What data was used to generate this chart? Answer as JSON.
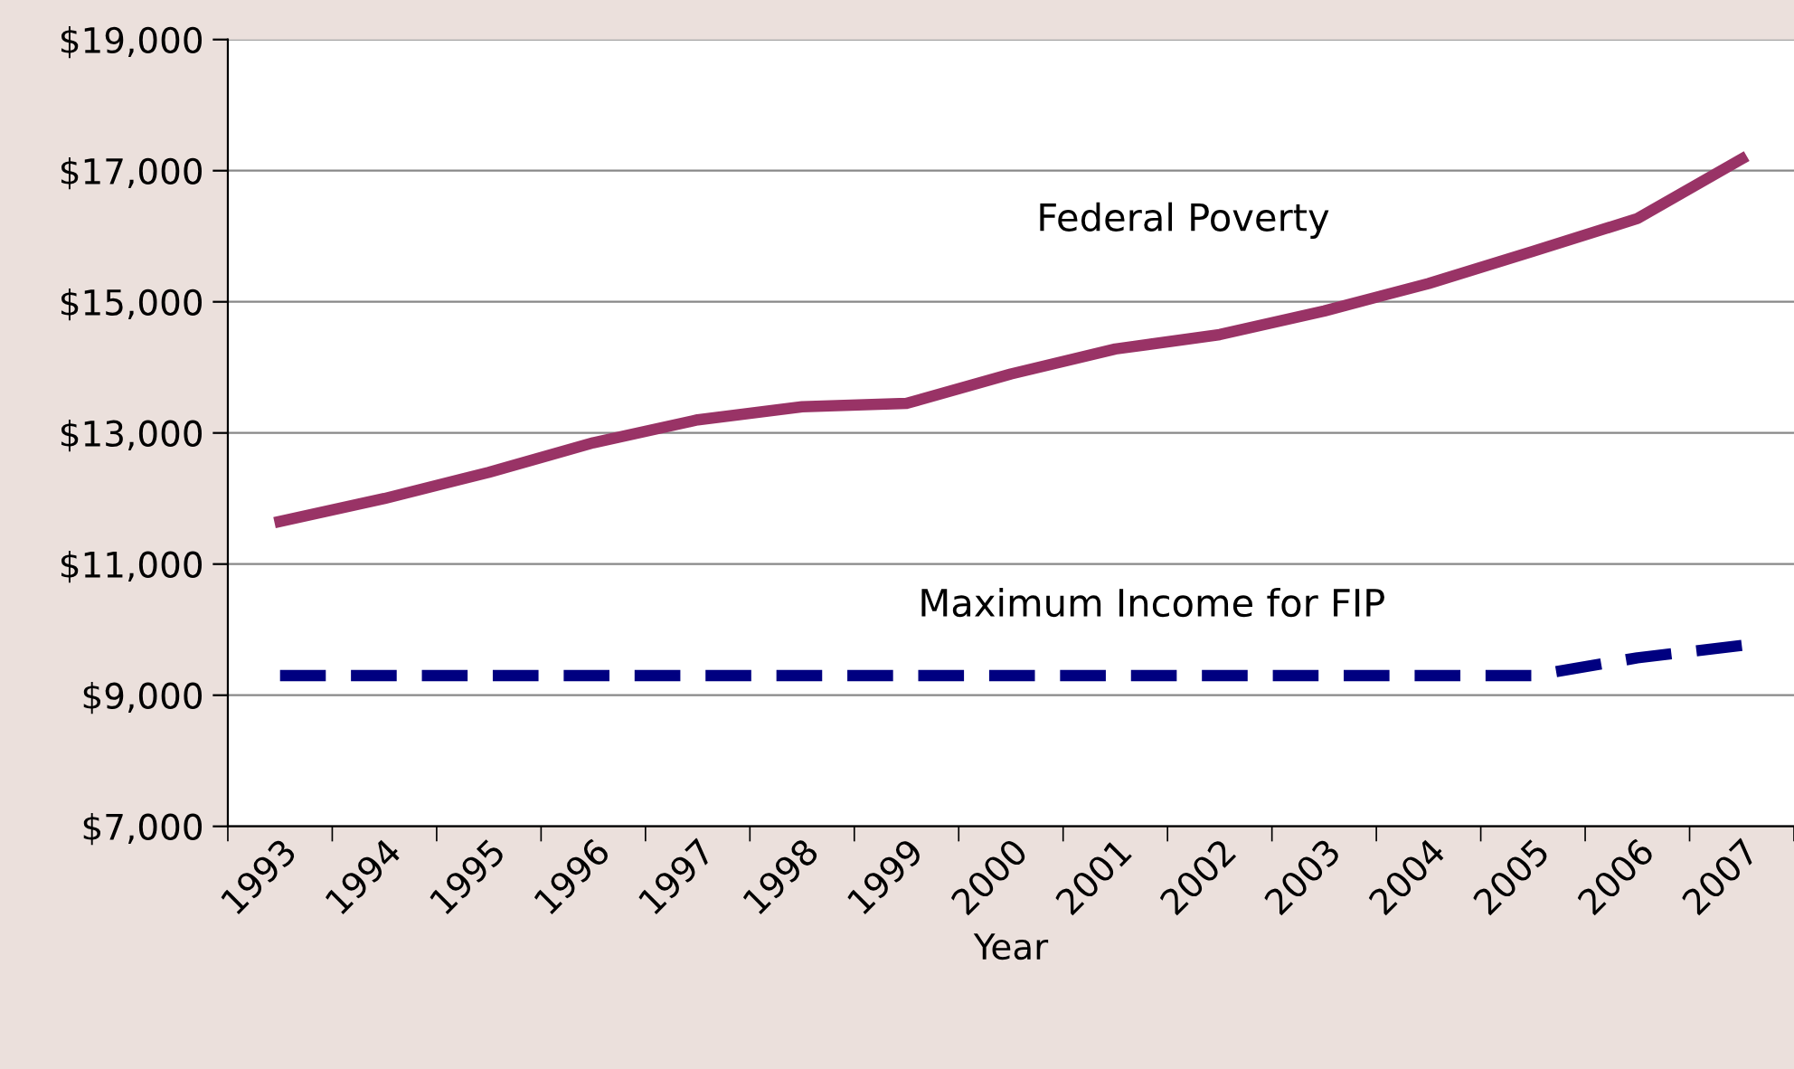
{
  "chart_data": {
    "type": "line",
    "xlabel": "Year",
    "categories": [
      "1993",
      "1994",
      "1995",
      "1996",
      "1997",
      "1998",
      "1999",
      "2000",
      "2001",
      "2002",
      "2003",
      "2004",
      "2005",
      "2006",
      "2007"
    ],
    "series": [
      {
        "color": "#993366",
        "line_style": "solid",
        "values": [
          11650,
          12000,
          12400,
          12850,
          13200,
          13400,
          13450,
          13900,
          14280,
          14500,
          14860,
          15280,
          15770,
          16270,
          17180
        ]
      },
      {
        "color": "#000080",
        "line_style": "dashed",
        "values": [
          9300,
          9300,
          9300,
          9300,
          9300,
          9300,
          9300,
          9300,
          9300,
          9300,
          9300,
          9300,
          9300,
          9570,
          9760
        ]
      }
    ],
    "ylim": [
      7000,
      19000
    ],
    "yticks": [
      {
        "value": 7000,
        "label": "$7,000"
      },
      {
        "value": 9000,
        "label": "$9,000"
      },
      {
        "value": 11000,
        "label": "$11,000"
      },
      {
        "value": 13000,
        "label": "$13,000"
      },
      {
        "value": 15000,
        "label": "$15,000"
      },
      {
        "value": 17000,
        "label": "$17,000"
      },
      {
        "value": 19000,
        "label": "$19,000"
      }
    ],
    "grid": "y",
    "legend": false,
    "marker": "none",
    "annotations": [
      "Federal Poverty",
      "Maximum Income for FIP"
    ]
  }
}
